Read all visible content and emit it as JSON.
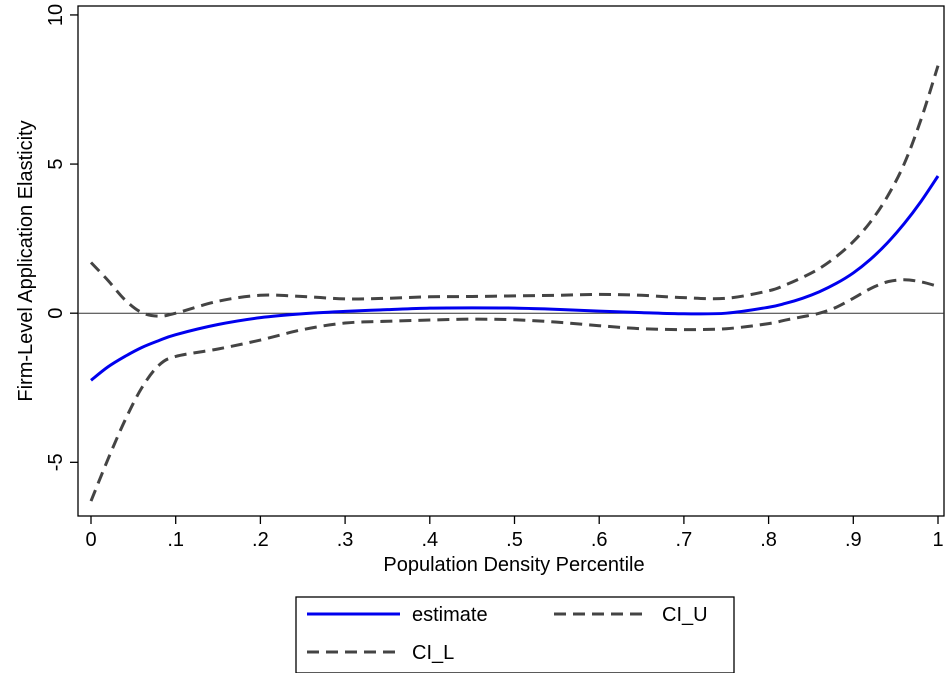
{
  "chart_data": {
    "type": "line",
    "xlabel": "Population Density Percentile",
    "ylabel": "Firm-Level Application Elasticity",
    "xlim": [
      0,
      1
    ],
    "ylim": [
      -6.8,
      10.3
    ],
    "x_ticks": [
      {
        "value": 0,
        "label": "0"
      },
      {
        "value": 0.1,
        "label": ".1"
      },
      {
        "value": 0.2,
        "label": ".2"
      },
      {
        "value": 0.3,
        "label": ".3"
      },
      {
        "value": 0.4,
        "label": ".4"
      },
      {
        "value": 0.5,
        "label": ".5"
      },
      {
        "value": 0.6,
        "label": ".6"
      },
      {
        "value": 0.7,
        "label": ".7"
      },
      {
        "value": 0.8,
        "label": ".8"
      },
      {
        "value": 0.9,
        "label": ".9"
      },
      {
        "value": 1,
        "label": "1"
      }
    ],
    "y_ticks": [
      {
        "value": -5,
        "label": "-5"
      },
      {
        "value": 0,
        "label": "0"
      },
      {
        "value": 5,
        "label": "5"
      },
      {
        "value": 10,
        "label": "10"
      }
    ],
    "reference_line_y": 0,
    "grid": false,
    "legend_position": "bottom",
    "x": [
      0,
      0.02,
      0.04,
      0.06,
      0.08,
      0.1,
      0.15,
      0.2,
      0.25,
      0.3,
      0.35,
      0.4,
      0.45,
      0.5,
      0.55,
      0.6,
      0.65,
      0.7,
      0.75,
      0.8,
      0.82,
      0.84,
      0.86,
      0.88,
      0.9,
      0.92,
      0.94,
      0.96,
      0.98,
      1.0
    ],
    "series": [
      {
        "name": "estimate",
        "color": "#0000ee",
        "style": "solid",
        "values": [
          -2.25,
          -1.8,
          -1.45,
          -1.15,
          -0.92,
          -0.72,
          -0.38,
          -0.15,
          -0.02,
          0.06,
          0.12,
          0.17,
          0.18,
          0.17,
          0.13,
          0.07,
          0.02,
          -0.02,
          0.0,
          0.2,
          0.33,
          0.5,
          0.72,
          1.0,
          1.35,
          1.8,
          2.35,
          3.0,
          3.75,
          4.6
        ]
      },
      {
        "name": "CI_U",
        "color": "#444444",
        "style": "dashed",
        "values": [
          1.7,
          1.1,
          0.45,
          0.02,
          -0.1,
          0.0,
          0.4,
          0.6,
          0.56,
          0.48,
          0.5,
          0.55,
          0.56,
          0.58,
          0.6,
          0.63,
          0.6,
          0.52,
          0.5,
          0.75,
          0.95,
          1.2,
          1.5,
          1.9,
          2.4,
          3.05,
          3.9,
          5.0,
          6.5,
          8.3
        ]
      },
      {
        "name": "CI_L",
        "color": "#444444",
        "style": "dashed",
        "values": [
          -6.3,
          -4.9,
          -3.6,
          -2.5,
          -1.75,
          -1.45,
          -1.2,
          -0.9,
          -0.55,
          -0.33,
          -0.27,
          -0.23,
          -0.2,
          -0.22,
          -0.3,
          -0.42,
          -0.52,
          -0.55,
          -0.52,
          -0.35,
          -0.23,
          -0.12,
          0.0,
          0.2,
          0.5,
          0.82,
          1.05,
          1.12,
          1.05,
          0.9
        ]
      }
    ]
  }
}
